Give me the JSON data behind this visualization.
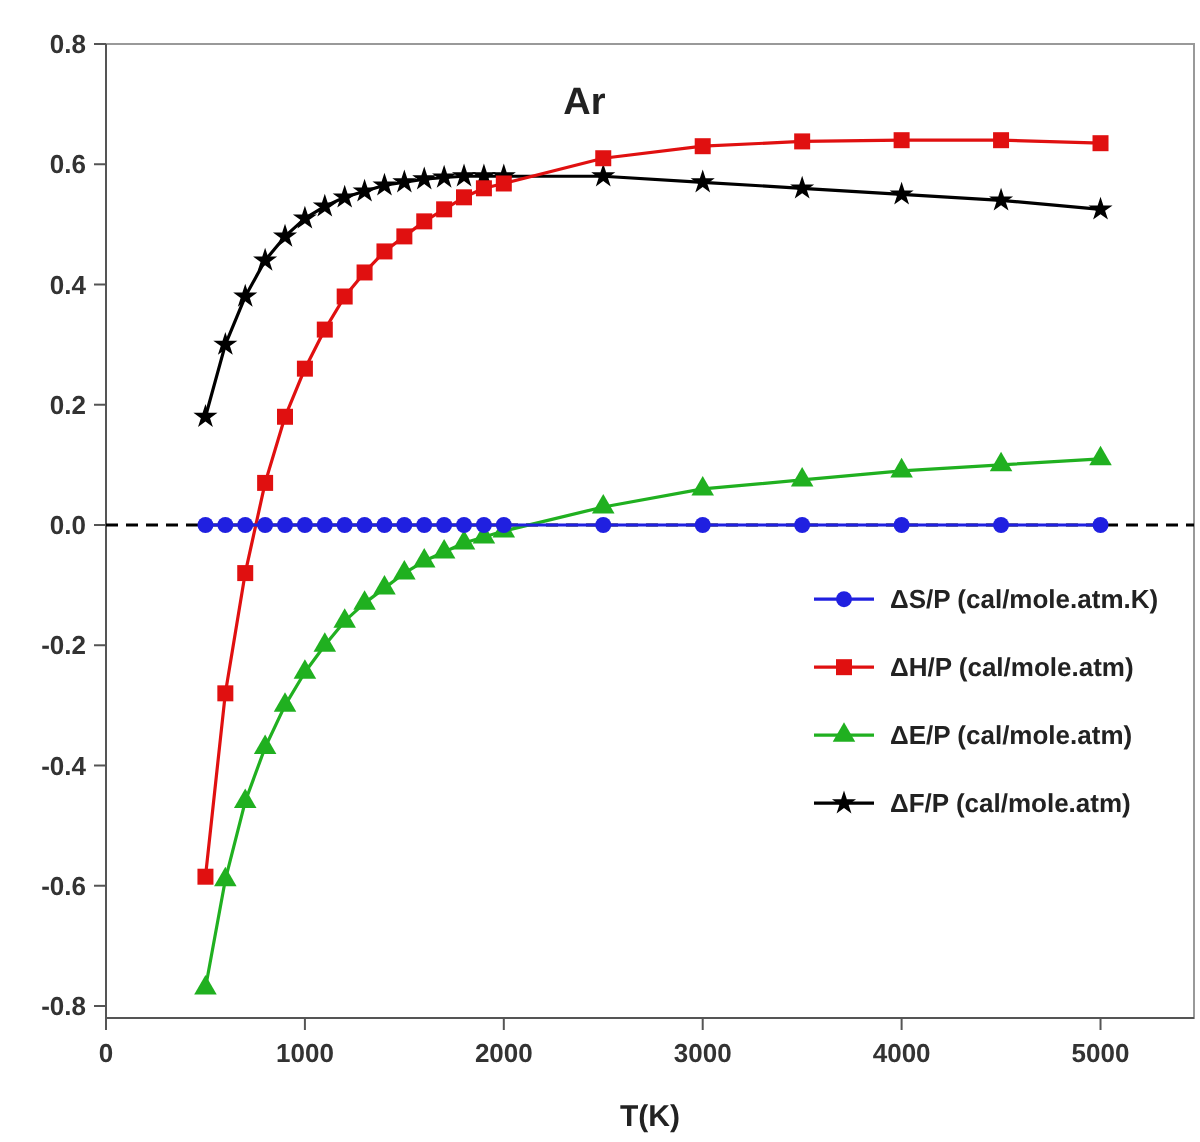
{
  "chart_data": {
    "type": "line",
    "title": "Ar",
    "xlabel": "T(K)",
    "x": [
      500,
      600,
      700,
      800,
      900,
      1000,
      1100,
      1200,
      1300,
      1400,
      1500,
      1600,
      1700,
      1800,
      1900,
      2000,
      2500,
      3000,
      3500,
      4000,
      4500,
      5000
    ],
    "series": [
      {
        "name": "ΔS/P (cal/mole.atm.K)",
        "color": "#2020e0",
        "marker": "circle",
        "values": [
          0,
          0,
          0,
          0,
          0,
          0,
          0,
          0,
          0,
          0,
          0,
          0,
          0,
          0,
          0,
          0,
          0,
          0,
          0,
          0,
          0,
          0
        ]
      },
      {
        "name": "ΔH/P (cal/mole.atm)",
        "color": "#e01010",
        "marker": "square",
        "values": [
          -0.585,
          -0.28,
          -0.08,
          0.07,
          0.18,
          0.26,
          0.325,
          0.38,
          0.42,
          0.455,
          0.48,
          0.505,
          0.525,
          0.545,
          0.56,
          0.568,
          0.61,
          0.63,
          0.638,
          0.64,
          0.64,
          0.635
        ]
      },
      {
        "name": "ΔE/P (cal/mole.atm)",
        "color": "#20b020",
        "marker": "triangle",
        "values": [
          -0.77,
          -0.59,
          -0.46,
          -0.37,
          -0.3,
          -0.245,
          -0.2,
          -0.16,
          -0.13,
          -0.105,
          -0.08,
          -0.06,
          -0.045,
          -0.03,
          -0.02,
          -0.01,
          0.03,
          0.06,
          0.075,
          0.09,
          0.1,
          0.11
        ]
      },
      {
        "name": "ΔF/P (cal/mole.atm)",
        "color": "#000000",
        "marker": "star",
        "values": [
          0.18,
          0.3,
          0.38,
          0.44,
          0.48,
          0.51,
          0.53,
          0.545,
          0.555,
          0.565,
          0.57,
          0.575,
          0.578,
          0.58,
          0.58,
          0.58,
          0.58,
          0.57,
          0.56,
          0.55,
          0.54,
          0.525
        ]
      }
    ],
    "xlim": [
      0,
      5470
    ],
    "xticks": [
      0,
      1000,
      2000,
      3000,
      4000,
      5000
    ],
    "ylim": [
      -0.82,
      0.8
    ],
    "yticks": [
      {
        "value": -0.8,
        "label": "-0.8"
      },
      {
        "value": -0.6,
        "label": "-0.6"
      },
      {
        "value": -0.4,
        "label": "-0.4"
      },
      {
        "value": -0.2,
        "label": "-0.2"
      },
      {
        "value": 0,
        "label": "0.0"
      },
      {
        "value": 0.2,
        "label": "0.2"
      },
      {
        "value": 0.4,
        "label": "0.4"
      },
      {
        "value": 0.6,
        "label": "0.6"
      },
      {
        "value": 0.8,
        "label": "0.8"
      }
    ],
    "ref_lines": [
      {
        "axis": "y",
        "value": 0,
        "color": "#000000",
        "line_style": "dashed"
      }
    ],
    "legend": "right",
    "grid": false
  }
}
